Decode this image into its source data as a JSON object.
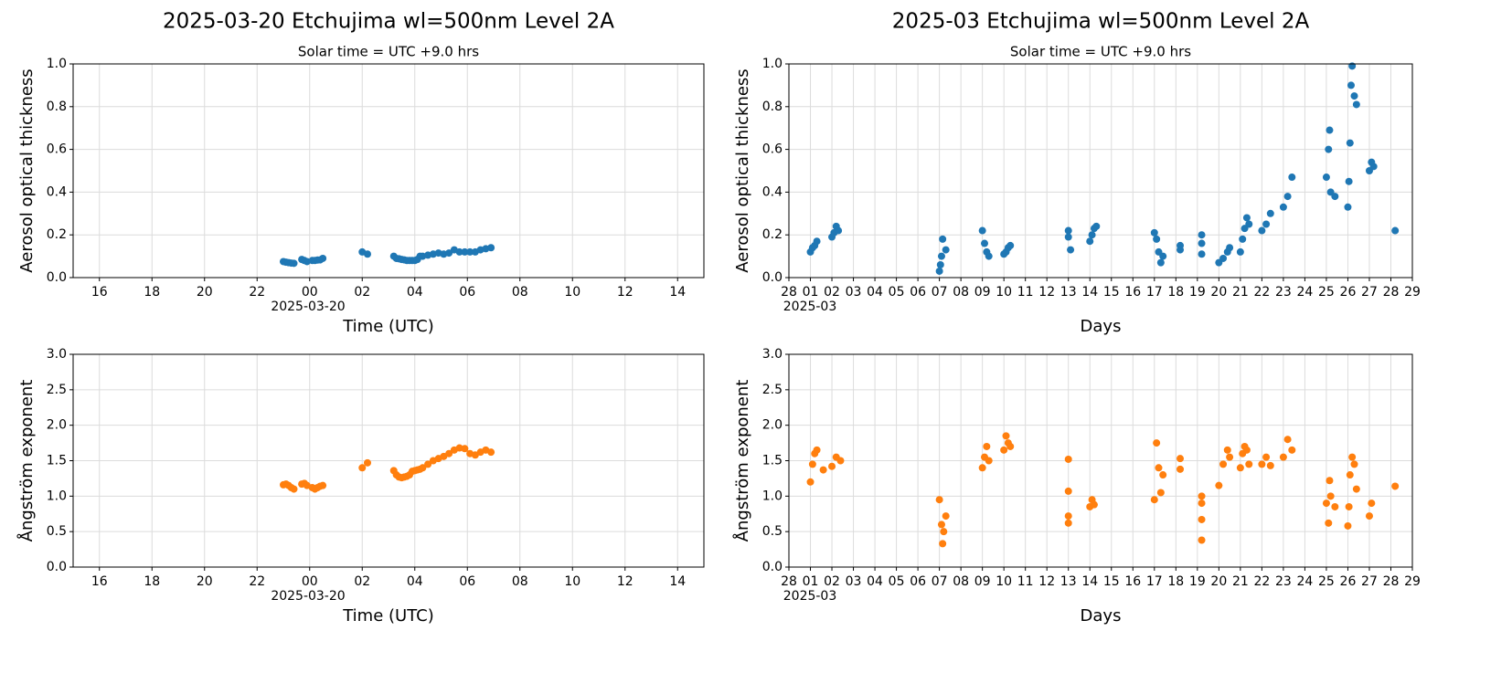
{
  "chart_data": [
    {
      "type": "scatter",
      "title": "2025-03-20  Etchujima  wl=500nm  Level 2A",
      "subtitle": "Solar time = UTC +9.0 hrs",
      "xlabel": "Time (UTC)",
      "ylabel": "Aerosol optical thickness",
      "x_offset_label": "2025-03-20",
      "color": "#1f77b4",
      "grid": true,
      "xlim": [
        -9,
        15
      ],
      "ylim": [
        0,
        1
      ],
      "xticks": [
        {
          "value": -8,
          "label": "16"
        },
        {
          "value": -6,
          "label": "18"
        },
        {
          "value": -4,
          "label": "20"
        },
        {
          "value": -2,
          "label": "22"
        },
        {
          "value": 0,
          "label": "00"
        },
        {
          "value": 2,
          "label": "02"
        },
        {
          "value": 4,
          "label": "04"
        },
        {
          "value": 6,
          "label": "06"
        },
        {
          "value": 8,
          "label": "08"
        },
        10,
        12,
        14
      ],
      "yticks": [
        {
          "value": 0,
          "label": "0.0"
        },
        0.2,
        0.4,
        0.6,
        0.8,
        {
          "value": 1,
          "label": "1.0"
        }
      ],
      "x": [
        -1.0,
        -0.9,
        -0.8,
        -0.7,
        -0.6,
        -0.3,
        -0.2,
        -0.1,
        0.1,
        0.2,
        0.3,
        0.4,
        0.5,
        2.0,
        2.2,
        3.2,
        3.3,
        3.4,
        3.5,
        3.6,
        3.7,
        3.8,
        3.9,
        4.0,
        4.1,
        4.2,
        4.3,
        4.5,
        4.7,
        4.9,
        5.1,
        5.3,
        5.5,
        5.7,
        5.9,
        6.1,
        6.3,
        6.5,
        6.7,
        6.9
      ],
      "values": [
        0.075,
        0.072,
        0.07,
        0.068,
        0.067,
        0.085,
        0.08,
        0.075,
        0.08,
        0.08,
        0.082,
        0.083,
        0.09,
        0.12,
        0.11,
        0.1,
        0.09,
        0.088,
        0.085,
        0.083,
        0.08,
        0.08,
        0.08,
        0.08,
        0.085,
        0.1,
        0.1,
        0.105,
        0.11,
        0.115,
        0.11,
        0.115,
        0.13,
        0.12,
        0.12,
        0.12,
        0.12,
        0.13,
        0.135,
        0.14
      ]
    },
    {
      "type": "scatter",
      "title": "2025-03  Etchujima  wl=500nm  Level 2A",
      "subtitle": "Solar time = UTC +9.0 hrs",
      "xlabel": "Days",
      "ylabel": "Aerosol optical thickness",
      "x_offset_label": "2025-03",
      "color": "#1f77b4",
      "grid": true,
      "xlim": [
        0,
        29
      ],
      "ylim": [
        0,
        1
      ],
      "xticks": [
        {
          "value": 0,
          "label": "28"
        },
        {
          "value": 1,
          "label": "01"
        },
        {
          "value": 2,
          "label": "02"
        },
        {
          "value": 3,
          "label": "03"
        },
        {
          "value": 4,
          "label": "04"
        },
        {
          "value": 5,
          "label": "05"
        },
        {
          "value": 6,
          "label": "06"
        },
        {
          "value": 7,
          "label": "07"
        },
        {
          "value": 8,
          "label": "08"
        },
        {
          "value": 9,
          "label": "09"
        },
        10,
        11,
        12,
        13,
        14,
        15,
        16,
        17,
        18,
        19,
        20,
        21,
        22,
        23,
        24,
        25,
        26,
        27,
        28,
        29
      ],
      "yticks": [
        {
          "value": 0,
          "label": "0.0"
        },
        0.2,
        0.4,
        0.6,
        0.8,
        {
          "value": 1,
          "label": "1.0"
        }
      ],
      "x": [
        1.0,
        1.1,
        1.2,
        1.3,
        2.0,
        2.1,
        2.2,
        2.3,
        7.0,
        7.05,
        7.1,
        7.15,
        7.3,
        9.0,
        9.1,
        9.2,
        9.3,
        10.0,
        10.1,
        10.2,
        10.3,
        13.0,
        13.0,
        13.1,
        14.0,
        14.1,
        14.2,
        14.3,
        17.0,
        17.1,
        17.2,
        17.3,
        17.4,
        18.2,
        18.2,
        19.2,
        19.2,
        19.2,
        20.0,
        20.2,
        20.4,
        20.5,
        21.0,
        21.1,
        21.2,
        21.3,
        21.4,
        22.0,
        22.2,
        22.4,
        23.0,
        23.2,
        23.4,
        25.0,
        25.1,
        25.15,
        25.2,
        25.4,
        26.0,
        26.05,
        26.1,
        26.15,
        26.2,
        26.3,
        26.4,
        27.0,
        27.1,
        27.2,
        28.2
      ],
      "values": [
        0.12,
        0.14,
        0.15,
        0.17,
        0.19,
        0.21,
        0.24,
        0.22,
        0.03,
        0.06,
        0.1,
        0.18,
        0.13,
        0.22,
        0.16,
        0.12,
        0.1,
        0.11,
        0.12,
        0.14,
        0.15,
        0.22,
        0.19,
        0.13,
        0.17,
        0.2,
        0.23,
        0.24,
        0.21,
        0.18,
        0.12,
        0.07,
        0.1,
        0.15,
        0.13,
        0.2,
        0.16,
        0.11,
        0.07,
        0.09,
        0.12,
        0.14,
        0.12,
        0.18,
        0.23,
        0.28,
        0.25,
        0.22,
        0.25,
        0.3,
        0.33,
        0.38,
        0.47,
        0.47,
        0.6,
        0.69,
        0.4,
        0.38,
        0.33,
        0.45,
        0.63,
        0.9,
        0.99,
        0.85,
        0.81,
        0.5,
        0.54,
        0.52,
        0.22
      ]
    },
    {
      "type": "scatter",
      "xlabel": "Time (UTC)",
      "ylabel": "Ångström exponent",
      "x_offset_label": "2025-03-20",
      "color": "#ff7f0e",
      "grid": true,
      "xlim": [
        -9,
        15
      ],
      "ylim": [
        0,
        3
      ],
      "xticks": [
        {
          "value": -8,
          "label": "16"
        },
        {
          "value": -6,
          "label": "18"
        },
        {
          "value": -4,
          "label": "20"
        },
        {
          "value": -2,
          "label": "22"
        },
        {
          "value": 0,
          "label": "00"
        },
        {
          "value": 2,
          "label": "02"
        },
        {
          "value": 4,
          "label": "04"
        },
        {
          "value": 6,
          "label": "06"
        },
        {
          "value": 8,
          "label": "08"
        },
        10,
        12,
        14
      ],
      "yticks": [
        {
          "value": 0,
          "label": "0.0"
        },
        0.5,
        {
          "value": 1,
          "label": "1.0"
        },
        1.5,
        {
          "value": 2,
          "label": "2.0"
        },
        2.5,
        {
          "value": 3,
          "label": "3.0"
        }
      ],
      "x": [
        -1.0,
        -0.9,
        -0.8,
        -0.7,
        -0.6,
        -0.3,
        -0.2,
        -0.1,
        0.1,
        0.2,
        0.3,
        0.4,
        0.5,
        2.0,
        2.2,
        3.2,
        3.3,
        3.4,
        3.5,
        3.6,
        3.7,
        3.8,
        3.9,
        4.0,
        4.1,
        4.2,
        4.3,
        4.5,
        4.7,
        4.9,
        5.1,
        5.3,
        5.5,
        5.7,
        5.9,
        6.1,
        6.3,
        6.5,
        6.7,
        6.9
      ],
      "values": [
        1.16,
        1.17,
        1.15,
        1.12,
        1.1,
        1.17,
        1.18,
        1.15,
        1.12,
        1.1,
        1.12,
        1.14,
        1.15,
        1.4,
        1.47,
        1.36,
        1.3,
        1.27,
        1.26,
        1.27,
        1.28,
        1.3,
        1.35,
        1.36,
        1.37,
        1.38,
        1.4,
        1.45,
        1.5,
        1.53,
        1.56,
        1.6,
        1.65,
        1.68,
        1.67,
        1.6,
        1.58,
        1.62,
        1.65,
        1.62
      ]
    },
    {
      "type": "scatter",
      "xlabel": "Days",
      "ylabel": "Ångström exponent",
      "x_offset_label": "2025-03",
      "color": "#ff7f0e",
      "grid": true,
      "xlim": [
        0,
        29
      ],
      "ylim": [
        0,
        3
      ],
      "xticks": [
        {
          "value": 0,
          "label": "28"
        },
        {
          "value": 1,
          "label": "01"
        },
        {
          "value": 2,
          "label": "02"
        },
        {
          "value": 3,
          "label": "03"
        },
        {
          "value": 4,
          "label": "04"
        },
        {
          "value": 5,
          "label": "05"
        },
        {
          "value": 6,
          "label": "06"
        },
        {
          "value": 7,
          "label": "07"
        },
        {
          "value": 8,
          "label": "08"
        },
        {
          "value": 9,
          "label": "09"
        },
        10,
        11,
        12,
        13,
        14,
        15,
        16,
        17,
        18,
        19,
        20,
        21,
        22,
        23,
        24,
        25,
        26,
        27,
        28,
        29
      ],
      "yticks": [
        {
          "value": 0,
          "label": "0.0"
        },
        0.5,
        {
          "value": 1,
          "label": "1.0"
        },
        1.5,
        {
          "value": 2,
          "label": "2.0"
        },
        2.5,
        {
          "value": 3,
          "label": "3.0"
        }
      ],
      "x": [
        1.0,
        1.1,
        1.2,
        1.3,
        1.6,
        2.0,
        2.2,
        2.4,
        7.0,
        7.1,
        7.15,
        7.2,
        7.3,
        9.0,
        9.1,
        9.2,
        9.3,
        10.0,
        10.1,
        10.2,
        10.3,
        13.0,
        13.0,
        13.0,
        13.0,
        14.0,
        14.1,
        14.2,
        17.0,
        17.1,
        17.2,
        17.3,
        17.4,
        18.2,
        18.2,
        19.2,
        19.2,
        19.2,
        19.2,
        20.0,
        20.2,
        20.4,
        20.5,
        21.0,
        21.1,
        21.2,
        21.3,
        21.4,
        22.0,
        22.2,
        22.4,
        23.0,
        23.2,
        23.4,
        25.0,
        25.1,
        25.15,
        25.2,
        25.4,
        26.0,
        26.05,
        26.1,
        26.2,
        26.3,
        26.4,
        27.0,
        27.1,
        28.2
      ],
      "values": [
        1.2,
        1.45,
        1.6,
        1.65,
        1.37,
        1.42,
        1.55,
        1.5,
        0.95,
        0.6,
        0.33,
        0.5,
        0.72,
        1.4,
        1.55,
        1.7,
        1.5,
        1.65,
        1.85,
        1.75,
        1.7,
        1.52,
        1.07,
        0.72,
        0.62,
        0.85,
        0.95,
        0.88,
        0.95,
        1.75,
        1.4,
        1.05,
        1.3,
        1.53,
        1.38,
        1.0,
        0.9,
        0.67,
        0.38,
        1.15,
        1.45,
        1.65,
        1.55,
        1.4,
        1.6,
        1.7,
        1.65,
        1.45,
        1.45,
        1.55,
        1.43,
        1.55,
        1.8,
        1.65,
        0.9,
        0.62,
        1.22,
        1.0,
        0.85,
        0.58,
        0.85,
        1.3,
        1.55,
        1.45,
        1.1,
        0.72,
        0.9,
        1.14
      ]
    }
  ]
}
